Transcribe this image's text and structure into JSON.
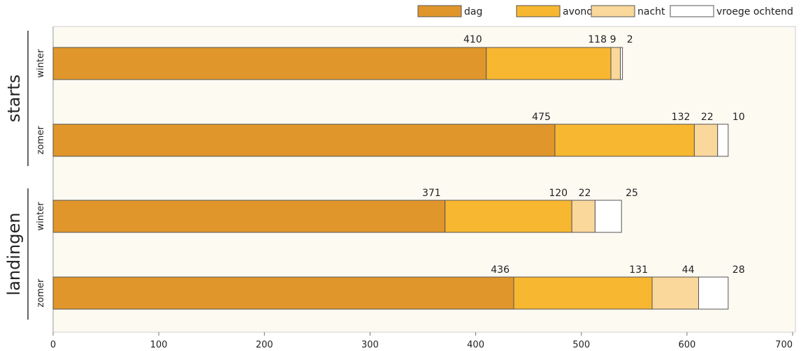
{
  "chart_data": {
    "type": "bar",
    "orientation": "horizontal",
    "stacked": true,
    "groups": [
      {
        "label": "starts",
        "subcategories": [
          "winter",
          "zomer"
        ]
      },
      {
        "label": "landingen",
        "subcategories": [
          "winter",
          "zomer"
        ]
      }
    ],
    "series": [
      {
        "name": "dag",
        "color": "#e0962b",
        "values": [
          410,
          475,
          371,
          436
        ]
      },
      {
        "name": "avond",
        "color": "#f8b730",
        "values": [
          118,
          132,
          120,
          131
        ]
      },
      {
        "name": "nacht",
        "color": "#fad79a",
        "values": [
          9,
          22,
          22,
          44
        ]
      },
      {
        "name": "vroege ochtend",
        "color": "#ffffff",
        "values": [
          2,
          10,
          25,
          28
        ]
      }
    ],
    "xlim": [
      0,
      700
    ],
    "xticks": [
      0,
      100,
      200,
      300,
      400,
      500,
      600,
      700
    ],
    "legend_position": "top-right",
    "grid": false
  }
}
